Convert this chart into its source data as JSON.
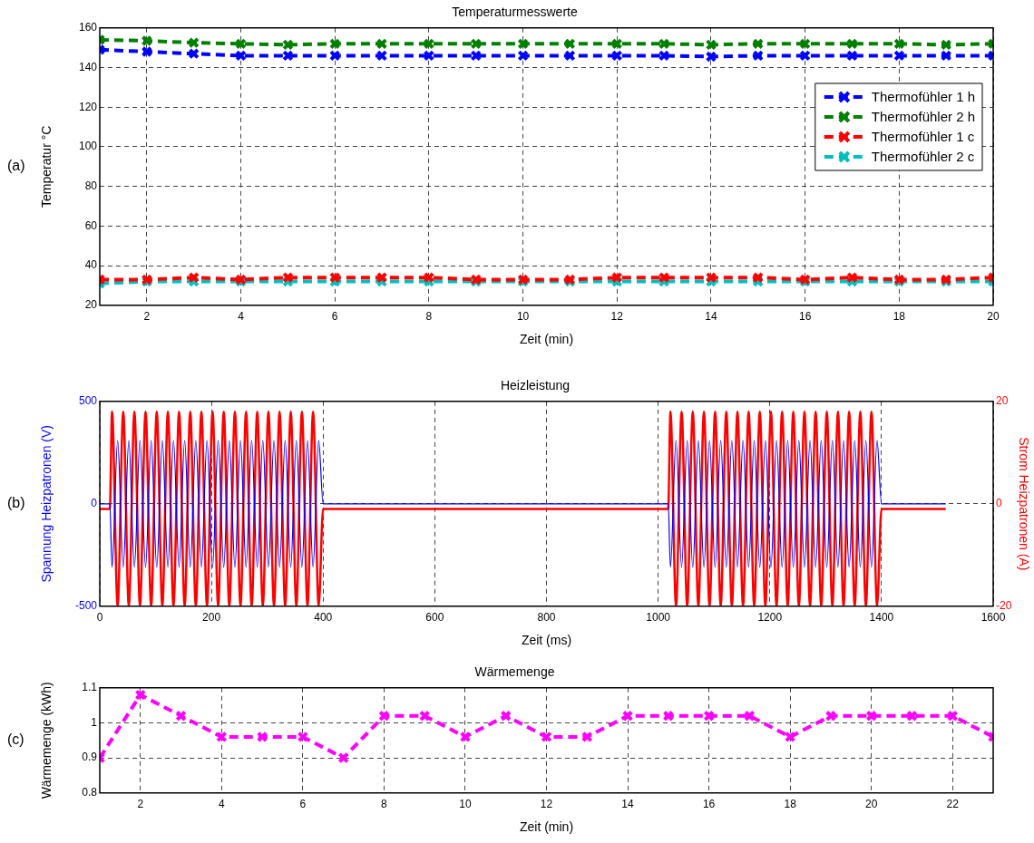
{
  "chart_data": [
    {
      "type": "line",
      "title": "Temperaturmesswerte",
      "xlabel": "Zeit (min)",
      "ylabel": "Temperatur °C",
      "annotations": [
        "(a)"
      ],
      "x": [
        1,
        2,
        3,
        4,
        5,
        6,
        7,
        8,
        9,
        10,
        11,
        12,
        13,
        14,
        15,
        16,
        17,
        18,
        19,
        20
      ],
      "series": [
        {
          "name": "Thermofühler 1 h",
          "color": "#0000ff",
          "values": [
            149,
            148,
            147,
            146,
            146,
            146,
            146,
            146,
            146,
            146,
            146,
            146,
            146,
            145.5,
            146,
            146,
            146,
            146,
            146,
            146
          ]
        },
        {
          "name": "Thermofühler 2 h",
          "color": "#008000",
          "values": [
            154,
            153.5,
            152.5,
            152,
            151.5,
            152,
            152,
            152,
            152,
            152,
            152,
            152,
            152,
            151.5,
            152,
            152,
            152,
            152,
            151.5,
            152
          ]
        },
        {
          "name": "Thermofühler 1 c",
          "color": "#ff0000",
          "values": [
            33,
            33,
            34,
            33,
            34,
            34,
            34,
            34,
            33,
            33,
            33,
            34,
            34,
            34,
            34,
            33,
            34,
            33,
            33,
            34
          ]
        },
        {
          "name": "Thermofühler 2 c",
          "color": "#00bfbf",
          "values": [
            31,
            32,
            32,
            32,
            32,
            32,
            32,
            32,
            32,
            32,
            32,
            32,
            32,
            32,
            32,
            32,
            32,
            32,
            32,
            32
          ]
        }
      ],
      "xlim": [
        1,
        20
      ],
      "xticks": [
        2,
        4,
        6,
        8,
        10,
        12,
        14,
        16,
        18,
        20
      ],
      "ylim": [
        20,
        160
      ],
      "yticks": [
        20,
        40,
        60,
        80,
        100,
        120,
        140,
        160
      ],
      "grid": true,
      "legend": "top right",
      "marker": "cross",
      "line_style": "dashed"
    },
    {
      "type": "line",
      "title": "Heizleistung",
      "xlabel": "Zeit (ms)",
      "ylabel": "Spannung Heizpatronen (V)",
      "y2label": "Strom Heizpatronen (A)",
      "annotations": [
        "(b)"
      ],
      "x": [
        0,
        18,
        22,
        32,
        42,
        52,
        62,
        72,
        82,
        92,
        102,
        112,
        122,
        132,
        142,
        152,
        162,
        172,
        182,
        192,
        202,
        212,
        222,
        232,
        242,
        252,
        262,
        272,
        282,
        292,
        302,
        312,
        322,
        332,
        342,
        352,
        362,
        372,
        382,
        392,
        400,
        1018,
        1022,
        1032,
        1042,
        1052,
        1062,
        1072,
        1082,
        1092,
        1102,
        1112,
        1122,
        1132,
        1142,
        1152,
        1162,
        1172,
        1182,
        1192,
        1202,
        1212,
        1222,
        1232,
        1242,
        1252,
        1262,
        1272,
        1282,
        1292,
        1302,
        1312,
        1322,
        1332,
        1342,
        1352,
        1362,
        1372,
        1382,
        1392,
        1400,
        1515
      ],
      "series": [
        {
          "color": "#0000ff",
          "values": [
            0,
            0,
            -310,
            310,
            -310,
            310,
            -310,
            310,
            -310,
            310,
            -310,
            310,
            -310,
            310,
            -310,
            310,
            -310,
            310,
            -310,
            310,
            -310,
            310,
            -310,
            310,
            -310,
            310,
            -310,
            310,
            -310,
            310,
            -310,
            310,
            -310,
            310,
            -310,
            310,
            -310,
            310,
            -310,
            310,
            0,
            0,
            -310,
            310,
            -310,
            310,
            -310,
            310,
            -310,
            310,
            -310,
            310,
            -310,
            310,
            -310,
            310,
            -310,
            310,
            -310,
            310,
            -310,
            310,
            -310,
            310,
            -310,
            310,
            -310,
            310,
            -310,
            310,
            -310,
            310,
            -310,
            310,
            -310,
            310,
            -310,
            310,
            -310,
            310,
            0,
            0
          ]
        },
        {
          "color": "#ff0000",
          "axis": "y2",
          "values": [
            -1,
            -1,
            18,
            -20,
            18,
            -20,
            18,
            -20,
            18,
            -20,
            18,
            -20,
            18,
            -20,
            18,
            -20,
            18,
            -20,
            18,
            -20,
            18,
            -20,
            18,
            -20,
            18,
            -20,
            18,
            -20,
            18,
            -20,
            18,
            -20,
            18,
            -20,
            18,
            -20,
            18,
            -20,
            18,
            -20,
            -1,
            -1,
            18,
            -20,
            18,
            -20,
            18,
            -20,
            18,
            -20,
            18,
            -20,
            18,
            -20,
            18,
            -20,
            18,
            -20,
            18,
            -20,
            18,
            -20,
            18,
            -20,
            18,
            -20,
            18,
            -20,
            18,
            -20,
            18,
            -20,
            18,
            -20,
            18,
            -20,
            18,
            -20,
            18,
            -20,
            -1,
            -1
          ]
        }
      ],
      "xlim": [
        0,
        1600
      ],
      "xticks": [
        0,
        200,
        400,
        600,
        800,
        1000,
        1200,
        1400,
        1600
      ],
      "ylim": [
        -500,
        500
      ],
      "yticks": [
        -500,
        0,
        500
      ],
      "y2lim": [
        -20,
        20
      ],
      "y2ticks": [
        -20,
        0,
        20
      ],
      "grid": true,
      "line_style": "solid"
    },
    {
      "type": "line",
      "title": "Wärmemenge",
      "xlabel": "Zeit (min)",
      "ylabel": "Wärmemenge (kWh)",
      "annotations": [
        "(c)"
      ],
      "x": [
        1,
        2,
        3,
        4,
        5,
        6,
        7,
        8,
        9,
        10,
        11,
        12,
        13,
        14,
        15,
        16,
        17,
        18,
        19,
        20,
        21,
        22,
        23
      ],
      "series": [
        {
          "color": "#ff00ff",
          "values": [
            0.9,
            1.08,
            1.02,
            0.96,
            0.96,
            0.96,
            0.9,
            1.02,
            1.02,
            0.96,
            1.02,
            0.96,
            0.96,
            1.02,
            1.02,
            1.02,
            1.02,
            0.96,
            1.02,
            1.02,
            1.02,
            1.02,
            0.96
          ]
        }
      ],
      "xlim": [
        1,
        23
      ],
      "xticks": [
        2,
        4,
        6,
        8,
        10,
        12,
        14,
        16,
        18,
        20,
        22
      ],
      "ylim": [
        0.8,
        1.1
      ],
      "yticks": [
        0.8,
        0.9,
        1,
        1.1
      ],
      "grid": true,
      "marker": "cross",
      "line_style": "dashed"
    }
  ]
}
